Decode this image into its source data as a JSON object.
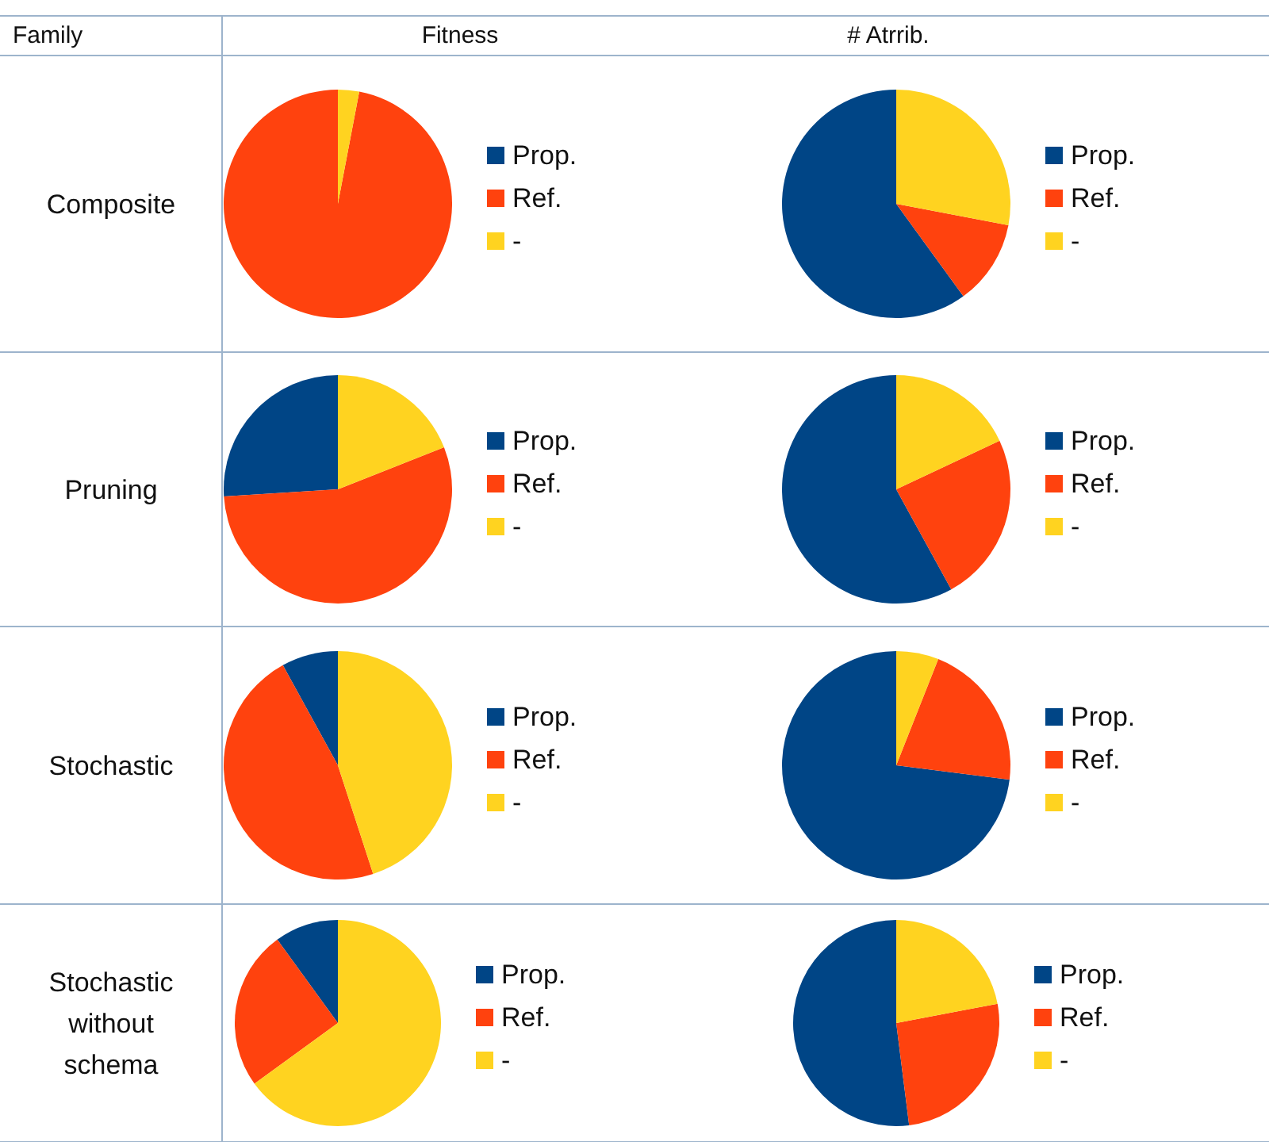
{
  "chart_data": [
    {
      "type": "other",
      "title": "Family",
      "annotations": [
        "Fitness",
        "# Atrrib.",
        "Composite",
        "Pruning",
        "Stochastic",
        "Stochastic without schema"
      ]
    },
    {
      "type": "pie",
      "categories": [
        "Prop.",
        "Ref.",
        "-"
      ],
      "values": [
        0,
        97,
        3
      ],
      "colors": [
        "#004586",
        "#ff420e",
        "#ffd320"
      ],
      "legend": "right"
    },
    {
      "type": "pie",
      "categories": [
        "Prop.",
        "Ref.",
        "-"
      ],
      "values": [
        60,
        12,
        28
      ],
      "colors": [
        "#004586",
        "#ff420e",
        "#ffd320"
      ],
      "legend": "right"
    },
    {
      "type": "pie",
      "categories": [
        "Prop.",
        "Ref.",
        "-"
      ],
      "values": [
        26,
        55,
        19
      ],
      "colors": [
        "#004586",
        "#ff420e",
        "#ffd320"
      ],
      "legend": "right"
    },
    {
      "type": "pie",
      "categories": [
        "Prop.",
        "Ref.",
        "-"
      ],
      "values": [
        58,
        24,
        18
      ],
      "colors": [
        "#004586",
        "#ff420e",
        "#ffd320"
      ],
      "legend": "right"
    },
    {
      "type": "pie",
      "categories": [
        "Prop.",
        "Ref.",
        "-"
      ],
      "values": [
        8,
        47,
        45
      ],
      "colors": [
        "#004586",
        "#ff420e",
        "#ffd320"
      ],
      "legend": "right"
    },
    {
      "type": "pie",
      "categories": [
        "Prop.",
        "Ref.",
        "-"
      ],
      "values": [
        73,
        21,
        6
      ],
      "colors": [
        "#004586",
        "#ff420e",
        "#ffd320"
      ],
      "legend": "right"
    },
    {
      "type": "pie",
      "categories": [
        "Prop.",
        "Ref.",
        "-"
      ],
      "values": [
        10,
        25,
        65
      ],
      "colors": [
        "#004586",
        "#ff420e",
        "#ffd320"
      ],
      "legend": "right"
    },
    {
      "type": "pie",
      "categories": [
        "Prop.",
        "Ref.",
        "-"
      ],
      "values": [
        52,
        26,
        22
      ],
      "colors": [
        "#004586",
        "#ff420e",
        "#ffd320"
      ],
      "legend": "right"
    }
  ]
}
